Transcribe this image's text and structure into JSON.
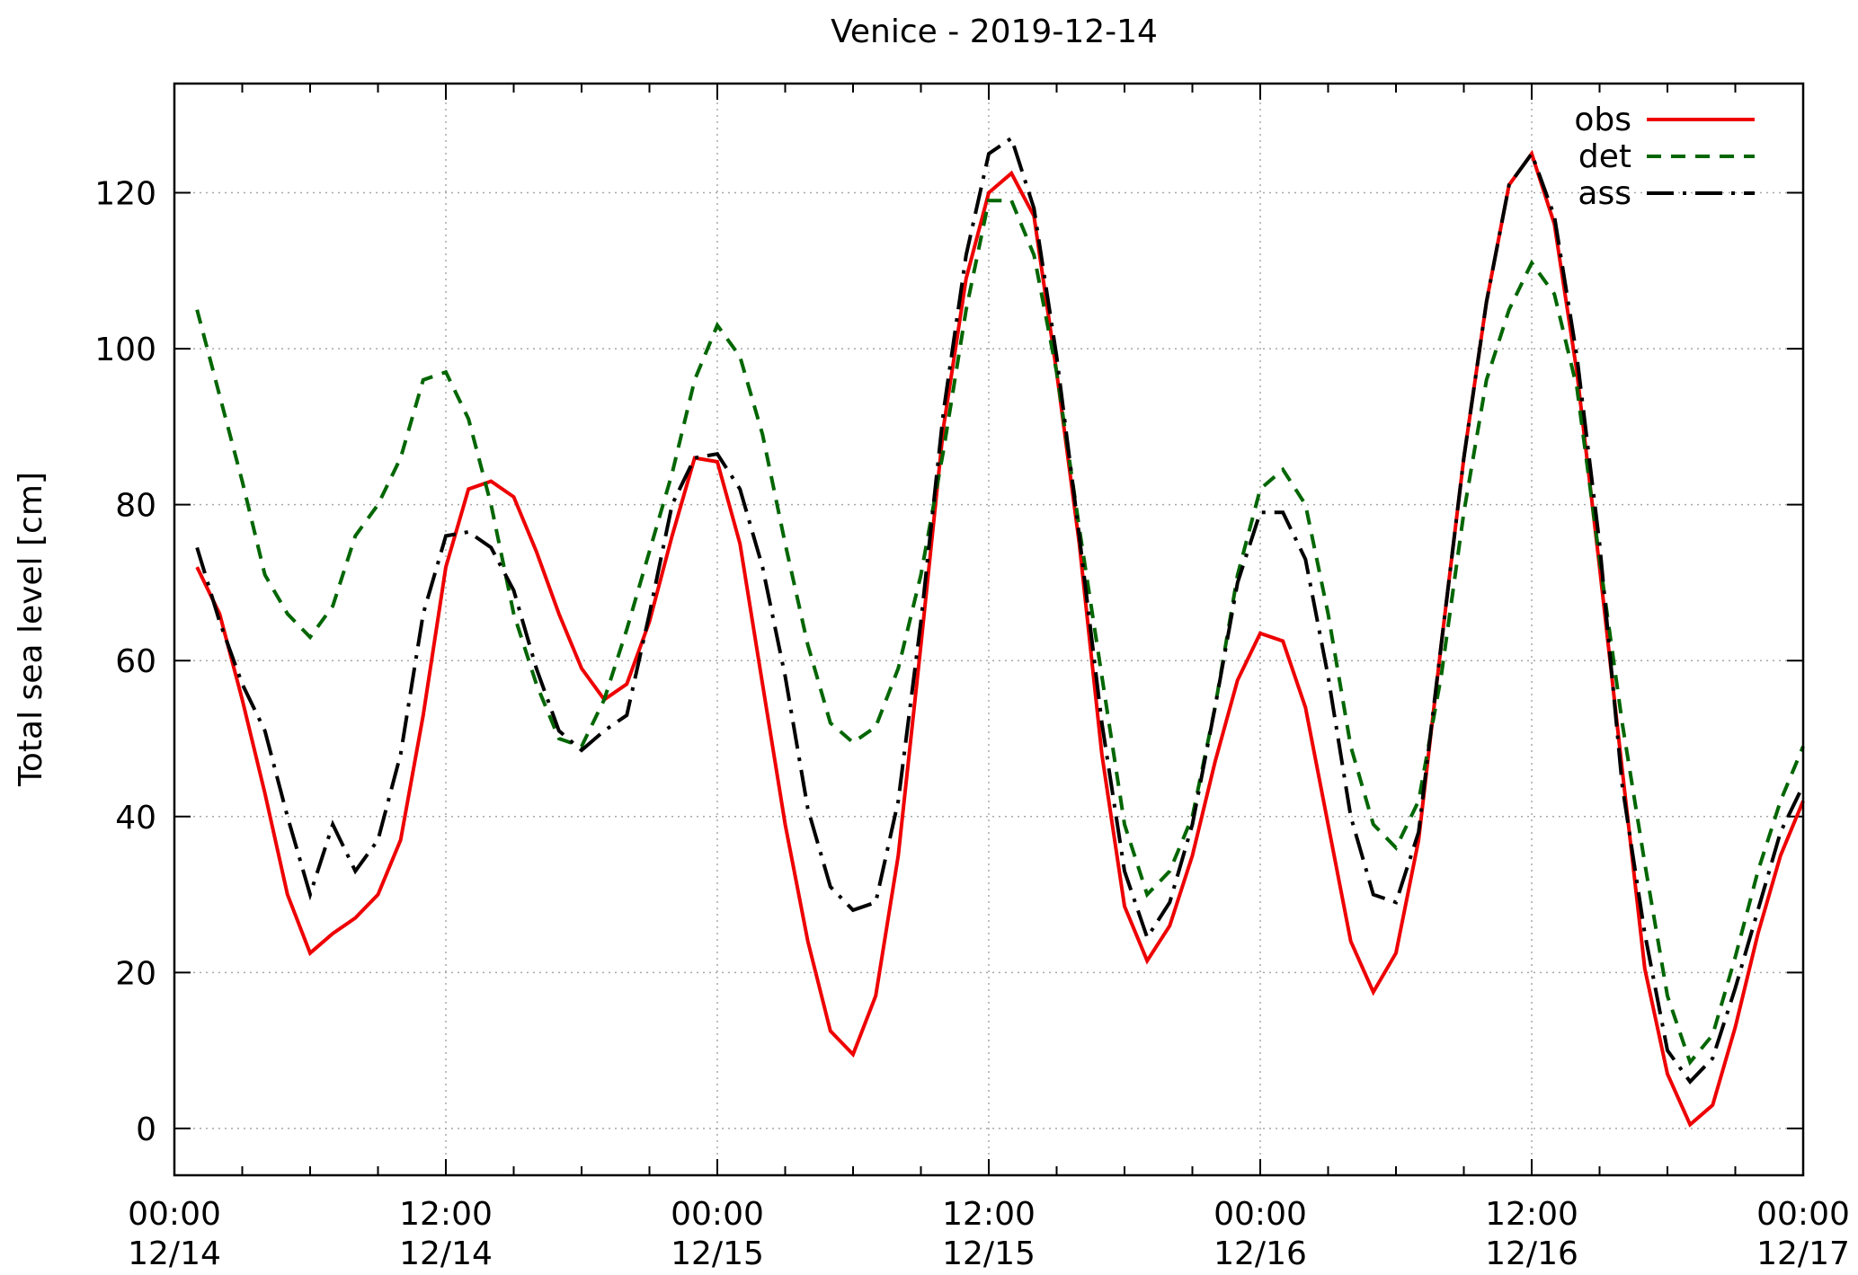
{
  "chart_data": {
    "type": "line",
    "title": "Venice - 2019-12-14",
    "xlabel": "",
    "ylabel": "Total sea level [cm]",
    "xlim": [
      "2019-12-14 00:00",
      "2019-12-17 00:00"
    ],
    "ylim": [
      -6,
      134
    ],
    "grid": true,
    "legend_position": "top-right",
    "x_ticks": [
      {
        "at_hours": 0,
        "line1": "00:00",
        "line2": "12/14"
      },
      {
        "at_hours": 12,
        "line1": "12:00",
        "line2": "12/14"
      },
      {
        "at_hours": 24,
        "line1": "00:00",
        "line2": "12/15"
      },
      {
        "at_hours": 36,
        "line1": "12:00",
        "line2": "12/15"
      },
      {
        "at_hours": 48,
        "line1": "00:00",
        "line2": "12/16"
      },
      {
        "at_hours": 60,
        "line1": "12:00",
        "line2": "12/16"
      },
      {
        "at_hours": 72,
        "line1": "00:00",
        "line2": "12/17"
      }
    ],
    "y_ticks": [
      0,
      20,
      40,
      60,
      80,
      100,
      120
    ],
    "series": [
      {
        "name": "obs",
        "color": "#ee0000",
        "style": "solid",
        "points": [
          [
            1,
            72
          ],
          [
            2,
            66
          ],
          [
            3,
            55
          ],
          [
            4,
            43
          ],
          [
            5,
            30
          ],
          [
            6,
            22.5
          ],
          [
            7,
            25
          ],
          [
            8,
            27
          ],
          [
            9,
            30
          ],
          [
            10,
            37
          ],
          [
            11,
            53
          ],
          [
            12,
            72
          ],
          [
            13,
            82
          ],
          [
            14,
            83
          ],
          [
            15,
            81
          ],
          [
            16,
            74
          ],
          [
            17,
            66
          ],
          [
            18,
            59
          ],
          [
            19,
            55
          ],
          [
            20,
            57
          ],
          [
            21,
            65
          ],
          [
            22,
            76
          ],
          [
            23,
            86
          ],
          [
            24,
            85.5
          ],
          [
            25,
            75
          ],
          [
            26,
            57
          ],
          [
            27,
            39
          ],
          [
            28,
            24
          ],
          [
            29,
            12.5
          ],
          [
            30,
            9.5
          ],
          [
            31,
            17
          ],
          [
            32,
            35
          ],
          [
            33,
            62
          ],
          [
            34,
            90
          ],
          [
            35,
            109
          ],
          [
            36,
            120
          ],
          [
            37,
            122.5
          ],
          [
            38,
            117
          ],
          [
            39,
            97
          ],
          [
            40,
            75
          ],
          [
            41,
            48
          ],
          [
            42,
            28.5
          ],
          [
            43,
            21.5
          ],
          [
            44,
            26
          ],
          [
            45,
            35
          ],
          [
            46,
            47
          ],
          [
            47,
            57.5
          ],
          [
            48,
            63.5
          ],
          [
            49,
            62.5
          ],
          [
            50,
            54
          ],
          [
            51,
            39
          ],
          [
            52,
            24
          ],
          [
            53,
            17.5
          ],
          [
            54,
            22.5
          ],
          [
            55,
            37
          ],
          [
            56,
            62
          ],
          [
            57,
            86
          ],
          [
            58,
            106
          ],
          [
            59,
            121
          ],
          [
            60,
            125
          ],
          [
            61,
            116
          ],
          [
            62,
            97
          ],
          [
            63,
            72
          ],
          [
            64,
            46
          ],
          [
            65,
            20.5
          ],
          [
            66,
            7
          ],
          [
            67,
            0.5
          ],
          [
            68,
            3
          ],
          [
            69,
            13
          ],
          [
            70,
            25
          ],
          [
            71,
            35
          ],
          [
            72,
            42
          ]
        ]
      },
      {
        "name": "det",
        "color": "#006600",
        "style": "dashed",
        "points": [
          [
            1,
            105
          ],
          [
            2,
            94
          ],
          [
            3,
            83
          ],
          [
            4,
            71
          ],
          [
            5,
            66
          ],
          [
            6,
            63
          ],
          [
            7,
            67
          ],
          [
            8,
            76
          ],
          [
            9,
            80
          ],
          [
            10,
            86
          ],
          [
            11,
            96
          ],
          [
            12,
            97
          ],
          [
            13,
            91
          ],
          [
            14,
            80
          ],
          [
            15,
            66
          ],
          [
            16,
            57
          ],
          [
            17,
            50
          ],
          [
            18,
            49
          ],
          [
            19,
            55
          ],
          [
            20,
            64
          ],
          [
            21,
            74
          ],
          [
            22,
            84
          ],
          [
            23,
            96
          ],
          [
            24,
            103
          ],
          [
            25,
            99
          ],
          [
            26,
            89
          ],
          [
            27,
            75
          ],
          [
            28,
            62
          ],
          [
            29,
            52
          ],
          [
            30,
            49.5
          ],
          [
            31,
            51.5
          ],
          [
            32,
            59
          ],
          [
            33,
            71
          ],
          [
            34,
            87
          ],
          [
            35,
            105
          ],
          [
            36,
            119
          ],
          [
            37,
            119
          ],
          [
            38,
            112
          ],
          [
            39,
            97
          ],
          [
            40,
            77
          ],
          [
            41,
            58
          ],
          [
            42,
            39
          ],
          [
            43,
            30
          ],
          [
            44,
            33
          ],
          [
            45,
            40
          ],
          [
            46,
            54
          ],
          [
            47,
            71
          ],
          [
            48,
            82
          ],
          [
            49,
            84.5
          ],
          [
            50,
            80
          ],
          [
            51,
            66
          ],
          [
            52,
            49
          ],
          [
            53,
            39
          ],
          [
            54,
            36
          ],
          [
            55,
            42
          ],
          [
            56,
            58
          ],
          [
            57,
            79
          ],
          [
            58,
            96
          ],
          [
            59,
            105
          ],
          [
            60,
            111
          ],
          [
            61,
            107
          ],
          [
            62,
            95
          ],
          [
            63,
            73
          ],
          [
            64,
            52
          ],
          [
            65,
            34
          ],
          [
            66,
            17
          ],
          [
            67,
            8.5
          ],
          [
            68,
            12
          ],
          [
            69,
            22
          ],
          [
            70,
            33
          ],
          [
            71,
            42
          ],
          [
            72,
            49
          ]
        ]
      },
      {
        "name": "ass",
        "color": "#000000",
        "style": "dashdot",
        "points": [
          [
            1,
            74.5
          ],
          [
            2,
            65
          ],
          [
            3,
            57
          ],
          [
            4,
            51
          ],
          [
            5,
            40
          ],
          [
            6,
            30
          ],
          [
            7,
            39
          ],
          [
            8,
            33
          ],
          [
            9,
            37
          ],
          [
            10,
            48
          ],
          [
            11,
            66
          ],
          [
            12,
            76
          ],
          [
            13,
            76.5
          ],
          [
            14,
            74.5
          ],
          [
            15,
            69
          ],
          [
            16,
            59
          ],
          [
            17,
            51
          ],
          [
            18,
            48.5
          ],
          [
            19,
            51
          ],
          [
            20,
            53
          ],
          [
            21,
            66
          ],
          [
            22,
            80
          ],
          [
            23,
            86
          ],
          [
            24,
            86.5
          ],
          [
            25,
            82
          ],
          [
            26,
            72
          ],
          [
            27,
            58
          ],
          [
            28,
            41
          ],
          [
            29,
            31
          ],
          [
            30,
            28
          ],
          [
            31,
            29
          ],
          [
            32,
            42
          ],
          [
            33,
            65
          ],
          [
            34,
            92
          ],
          [
            35,
            112
          ],
          [
            36,
            125
          ],
          [
            37,
            127
          ],
          [
            38,
            118
          ],
          [
            39,
            99
          ],
          [
            40,
            76
          ],
          [
            41,
            52
          ],
          [
            42,
            33
          ],
          [
            43,
            24.5
          ],
          [
            44,
            29
          ],
          [
            45,
            39
          ],
          [
            46,
            54
          ],
          [
            47,
            70
          ],
          [
            48,
            79
          ],
          [
            49,
            79
          ],
          [
            50,
            73
          ],
          [
            51,
            58
          ],
          [
            52,
            40
          ],
          [
            53,
            30
          ],
          [
            54,
            29
          ],
          [
            55,
            38
          ],
          [
            56,
            62
          ],
          [
            57,
            86
          ],
          [
            58,
            106
          ],
          [
            59,
            121
          ],
          [
            60,
            125
          ],
          [
            61,
            117
          ],
          [
            62,
            99
          ],
          [
            63,
            75
          ],
          [
            64,
            44
          ],
          [
            65,
            25
          ],
          [
            66,
            10
          ],
          [
            67,
            6
          ],
          [
            68,
            9
          ],
          [
            69,
            18
          ],
          [
            70,
            28
          ],
          [
            71,
            38
          ],
          [
            72,
            44
          ]
        ]
      }
    ]
  }
}
